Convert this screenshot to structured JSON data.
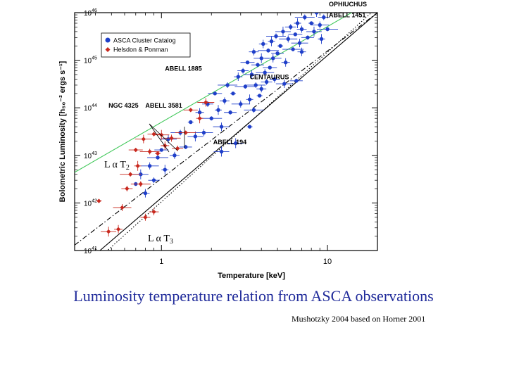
{
  "chart_data": {
    "type": "scatter",
    "title": "",
    "xlabel": "Temperature [keV]",
    "ylabel": "Bolometric Luminosity [h₅₀⁻² ergs s⁻¹]",
    "x_scale": "log",
    "y_scale": "log",
    "xlim": [
      0.3,
      20
    ],
    "ylim": [
      1e+41,
      1e+46
    ],
    "x_ticks": [
      {
        "value": 1,
        "label": "1"
      },
      {
        "value": 10,
        "label": "10"
      }
    ],
    "y_ticks": [
      {
        "value": 1e+41,
        "label": "10",
        "exp": "41"
      },
      {
        "value": 1e+42,
        "label": "10",
        "exp": "42"
      },
      {
        "value": 1e+43,
        "label": "10",
        "exp": "43"
      },
      {
        "value": 1e+44,
        "label": "10",
        "exp": "44"
      },
      {
        "value": 1e+45,
        "label": "10",
        "exp": "45"
      },
      {
        "value": 1e+46,
        "label": "10",
        "exp": "46"
      }
    ],
    "legend": {
      "position": "top-left",
      "entries": [
        {
          "label": "ASCA Cluster Catalog",
          "color": "#1f3fc9",
          "marker": "circle"
        },
        {
          "label": "Helsdon & Ponman",
          "color": "#c8281e",
          "marker": "diamond"
        }
      ]
    },
    "series": [
      {
        "name": "ASCA Cluster Catalog",
        "color": "#1f3fc9",
        "points": [
          [
            0.7,
            2.5e+42
          ],
          [
            0.75,
            4e+42
          ],
          [
            0.8,
            1.6e+42
          ],
          [
            0.85,
            6e+42
          ],
          [
            0.9,
            3e+42
          ],
          [
            0.95,
            9e+42
          ],
          [
            1.0,
            1.3e+43
          ],
          [
            1.05,
            5e+42
          ],
          [
            1.1,
            2.2e+43
          ],
          [
            1.2,
            1e+43
          ],
          [
            1.3,
            3e+43
          ],
          [
            1.4,
            1.5e+43
          ],
          [
            1.5,
            5e+43
          ],
          [
            1.6,
            2.5e+43
          ],
          [
            1.7,
            8e+43
          ],
          [
            1.8,
            3e+43
          ],
          [
            1.9,
            1.2e+44
          ],
          [
            2.0,
            6e+43
          ],
          [
            2.1,
            2e+44
          ],
          [
            2.2,
            9e+43
          ],
          [
            2.3,
            4e+43
          ],
          [
            2.4,
            1.4e+44
          ],
          [
            2.5,
            3e+44
          ],
          [
            2.6,
            8e+43
          ],
          [
            2.7,
            2e+44
          ],
          [
            2.8,
            1.8e+43
          ],
          [
            2.9,
            4.5e+44
          ],
          [
            3.0,
            1.2e+44
          ],
          [
            3.1,
            6e+44
          ],
          [
            3.2,
            2.8e+44
          ],
          [
            3.3,
            9e+44
          ],
          [
            3.4,
            1.5e+44
          ],
          [
            3.5,
            5e+44
          ],
          [
            3.6,
            1.5e+45
          ],
          [
            3.7,
            3e+44
          ],
          [
            3.8,
            8e+44
          ],
          [
            3.9,
            1.8e+44
          ],
          [
            4.0,
            1.1e+45
          ],
          [
            4.1,
            2.2e+45
          ],
          [
            4.2,
            5.5e+44
          ],
          [
            4.3,
            3.5e+44
          ],
          [
            4.4,
            1.6e+45
          ],
          [
            4.5,
            7e+44
          ],
          [
            4.6,
            2.5e+45
          ],
          [
            4.7,
            1.1e+45
          ],
          [
            4.8,
            4e+44
          ],
          [
            4.9,
            3.2e+45
          ],
          [
            5.0,
            1.4e+45
          ],
          [
            5.2,
            2e+45
          ],
          [
            5.4,
            4e+45
          ],
          [
            5.6,
            9e+44
          ],
          [
            5.8,
            2.8e+45
          ],
          [
            6.0,
            5e+45
          ],
          [
            6.2,
            1.7e+45
          ],
          [
            6.4,
            3.5e+45
          ],
          [
            6.6,
            6e+45
          ],
          [
            6.8,
            2.3e+45
          ],
          [
            7.0,
            4.5e+45
          ],
          [
            7.3,
            8e+45
          ],
          [
            7.6,
            3e+45
          ],
          [
            8.0,
            6e+45
          ],
          [
            8.3,
            4e+45
          ],
          [
            8.6,
            1e+46
          ],
          [
            9.0,
            5.5e+45
          ],
          [
            9.5,
            8e+45
          ],
          [
            10.0,
            4.5e+45
          ],
          [
            10.5,
            1.1e+46
          ],
          [
            9.2,
            2.8e+45
          ],
          [
            5.5,
            3.2e+44
          ],
          [
            4.0,
            2.5e+44
          ],
          [
            3.6,
            9e+43
          ],
          [
            6.5,
            3.7e+44
          ],
          [
            3.4,
            4e+43
          ],
          [
            2.3,
            1.2e+43
          ],
          [
            7.0,
            1.5e+45
          ]
        ]
      },
      {
        "name": "Helsdon & Ponman",
        "color": "#c8281e",
        "points": [
          [
            0.42,
            1.1e+42
          ],
          [
            0.48,
            2.5e+41
          ],
          [
            0.55,
            2.8e+41
          ],
          [
            0.58,
            8e+41
          ],
          [
            0.62,
            2e+42
          ],
          [
            0.65,
            4e+42
          ],
          [
            0.7,
            1.3e+43
          ],
          [
            0.72,
            6e+42
          ],
          [
            0.78,
            2.2e+43
          ],
          [
            0.8,
            5e+41
          ],
          [
            0.85,
            1.2e+43
          ],
          [
            0.9,
            2.8e+43
          ],
          [
            0.95,
            1.1e+43
          ],
          [
            1.0,
            2.7e+43
          ],
          [
            1.05,
            1.6e+43
          ],
          [
            1.15,
            2.3e+43
          ],
          [
            1.25,
            1.4e+43
          ],
          [
            1.4,
            3e+43
          ],
          [
            1.5,
            9e+43
          ],
          [
            1.7,
            6e+43
          ],
          [
            1.85,
            1.3e+44
          ],
          [
            0.9,
            6.5e+41
          ],
          [
            0.75,
            2.5e+42
          ]
        ]
      }
    ],
    "fit_lines": [
      {
        "label": "L α T 2",
        "color": "#41c85a",
        "style": "solid",
        "points": [
          [
            0.3,
            4.4e+42
          ],
          [
            20,
            2.06e+46
          ]
        ]
      },
      {
        "label": "L α T 3",
        "color": "#000000",
        "style": "solid",
        "points": [
          [
            0.3,
            3.5e+40
          ],
          [
            20,
            1e+46
          ]
        ]
      },
      {
        "label": "",
        "color": "#000000",
        "style": "dotted",
        "points": [
          [
            0.3,
            2.4e+40
          ],
          [
            20,
            1.3e+46
          ]
        ]
      },
      {
        "label": "",
        "color": "#000000",
        "style": "dashdot",
        "points": [
          [
            0.3,
            1.3e+41
          ],
          [
            20,
            1e+46
          ]
        ]
      }
    ],
    "annotations": [
      {
        "text": "OPHIUCHUS",
        "x": 10.2,
        "y": 1.35e+46
      },
      {
        "text": "ABELL 1451",
        "x": 10.2,
        "y": 8e+45
      },
      {
        "text": "ABELL 1885",
        "x": 1.05,
        "y": 6e+44
      },
      {
        "text": "CENTAURUS",
        "x": 3.4,
        "y": 4e+44
      },
      {
        "text": "NGC 4325",
        "x": 0.48,
        "y": 1e+44
      },
      {
        "text": "ABELL 3581",
        "x": 0.8,
        "y": 1e+44
      },
      {
        "text": "ABELL 194",
        "x": 2.05,
        "y": 1.7e+43
      }
    ],
    "slope_labels": [
      {
        "text": "L α T",
        "sub": "2"
      },
      {
        "text": "L α T",
        "sub": "3"
      }
    ]
  },
  "caption": "Luminosity temperature relation from ASCA observations",
  "credit": "Mushotzky 2004 based on Horner 2001"
}
